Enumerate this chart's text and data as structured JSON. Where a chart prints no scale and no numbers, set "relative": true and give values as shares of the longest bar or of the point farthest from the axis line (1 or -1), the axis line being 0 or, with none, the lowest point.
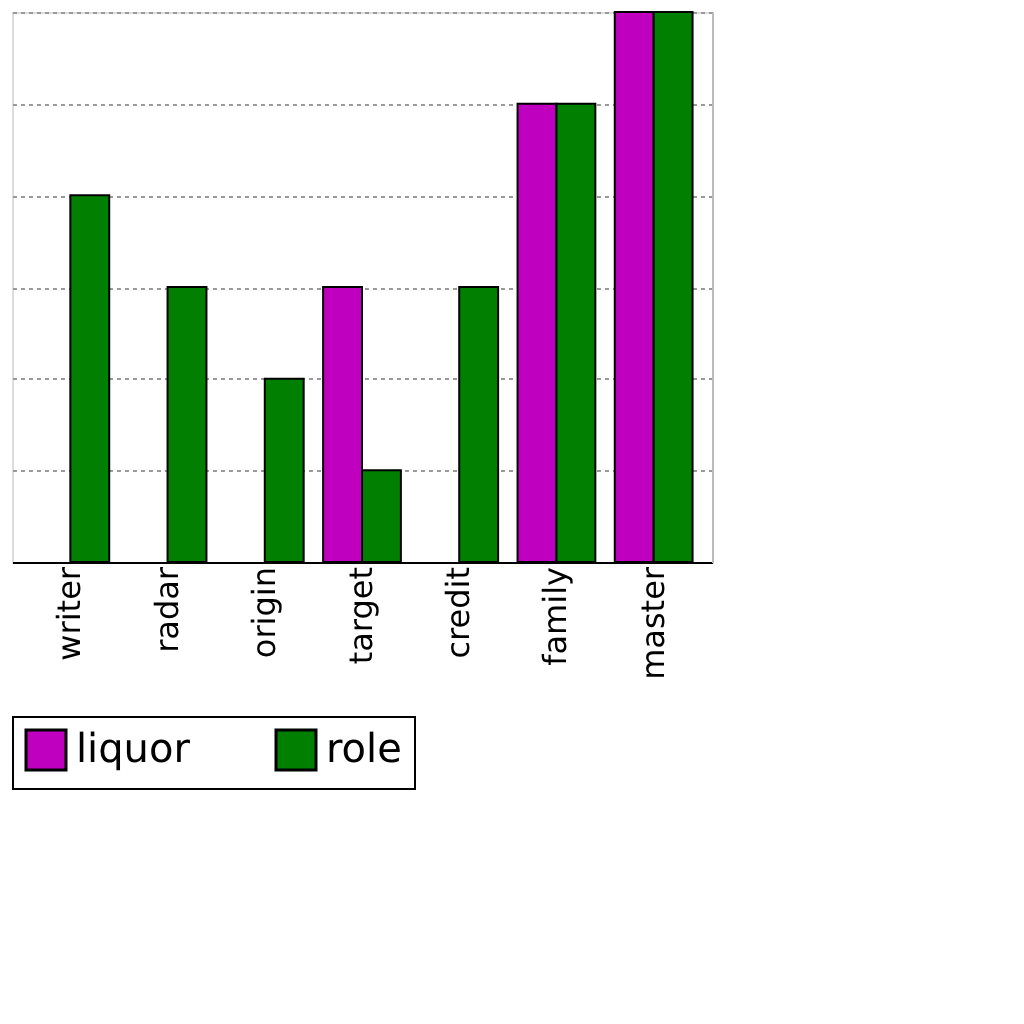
{
  "chart_data": {
    "type": "bar",
    "relative": true,
    "categories": [
      "writer",
      "radar",
      "origin",
      "target",
      "credit",
      "family",
      "master"
    ],
    "series": [
      {
        "name": "liquor",
        "color": "#bf00bf",
        "values": [
          null,
          null,
          null,
          0.5,
          null,
          0.833,
          1
        ]
      },
      {
        "name": "role",
        "color": "#007f00",
        "values": [
          0.667,
          0.5,
          0.333,
          0.167,
          0.5,
          0.833,
          1
        ]
      }
    ],
    "grid": "y",
    "legend": "bottom"
  }
}
